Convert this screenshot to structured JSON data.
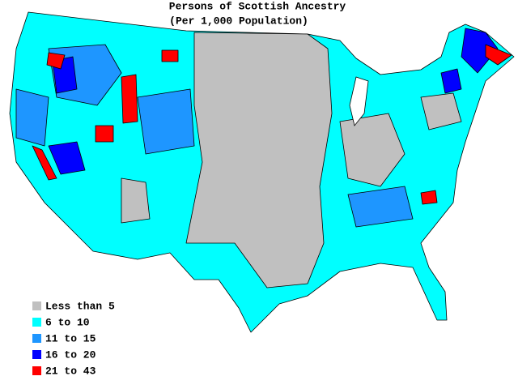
{
  "title": "Persons of Scottish Ancestry",
  "subtitle": "(Per 1,000 Population)",
  "legend": [
    {
      "label": "Less than 5",
      "color": "#c0c0c0"
    },
    {
      "label": "6 to 10",
      "color": "#00ffff"
    },
    {
      "label": "11 to 15",
      "color": "#1e96ff"
    },
    {
      "label": "16 to 20",
      "color": "#0000ff"
    },
    {
      "label": "21 to 43",
      "color": "#ff0000"
    }
  ]
}
